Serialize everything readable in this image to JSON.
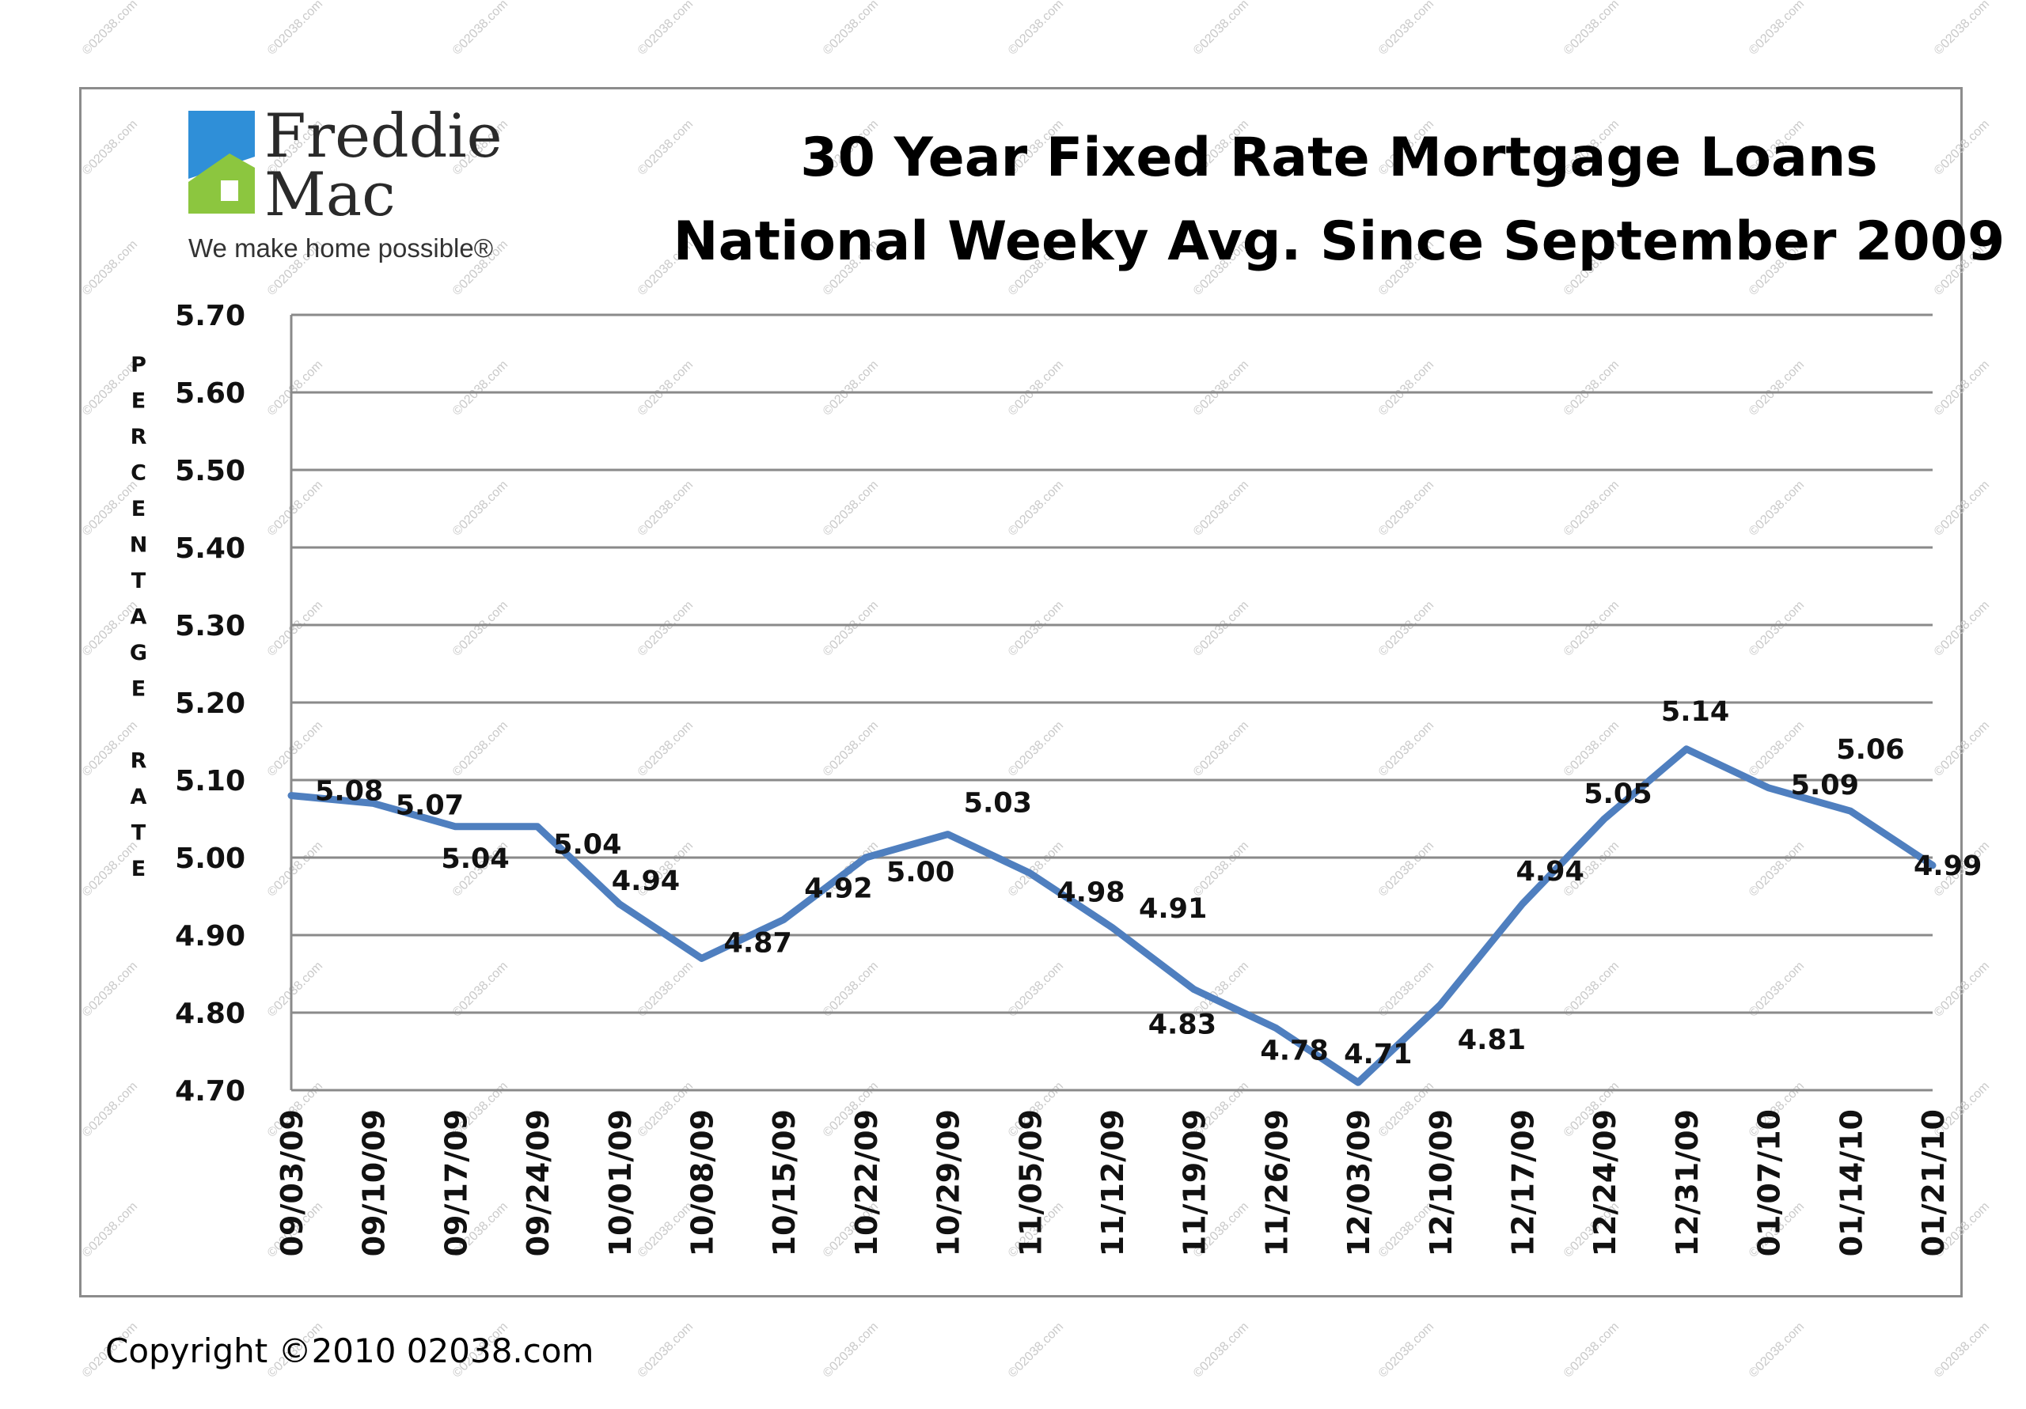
{
  "logo": {
    "line1": "Freddie",
    "line2": "Mac",
    "tagline": "We make home possible®",
    "colors": {
      "roof": "#2f8fd8",
      "house": "#8cc63f"
    }
  },
  "watermark": "©02038.com",
  "copyright": "Copyright ©2010 02038.com",
  "chart_data": {
    "type": "line",
    "title": [
      "30 Year Fixed Rate Mortgage Loans",
      "National Weeky Avg. Since September 2009"
    ],
    "ylabel_letters": [
      "P",
      "E",
      "R",
      "C",
      "E",
      "N",
      "T",
      "A",
      "G",
      "E",
      "",
      "R",
      "A",
      "T",
      "E"
    ],
    "ylim": [
      4.7,
      5.7
    ],
    "yticks": [
      "5.70",
      "5.60",
      "5.50",
      "5.40",
      "5.30",
      "5.20",
      "5.10",
      "5.00",
      "4.90",
      "4.80",
      "4.70"
    ],
    "grid": true,
    "line_color": "#4f7fbf",
    "categories": [
      "09/03/09",
      "09/10/09",
      "09/17/09",
      "09/24/09",
      "10/01/09",
      "10/08/09",
      "10/15/09",
      "10/22/09",
      "10/29/09",
      "11/05/09",
      "11/12/09",
      "11/19/09",
      "11/26/09",
      "12/03/09",
      "12/10/09",
      "12/17/09",
      "12/24/09",
      "12/31/09",
      "01/07/10",
      "01/14/10",
      "01/21/10"
    ],
    "values": [
      5.08,
      5.07,
      5.04,
      5.04,
      4.94,
      4.87,
      4.92,
      5.0,
      5.03,
      4.98,
      4.91,
      4.83,
      4.78,
      4.71,
      4.81,
      4.94,
      5.05,
      5.14,
      5.09,
      5.06,
      4.99
    ],
    "labels": [
      "5.08",
      "5.07",
      "5.04",
      "5.04",
      "4.94",
      "4.87",
      "4.92",
      "5.00",
      "5.03",
      "4.98",
      "4.91",
      "4.83",
      "4.78",
      "4.71",
      "4.81",
      "4.94",
      "5.05",
      "5.14",
      "5.09",
      "5.06",
      "4.99"
    ]
  }
}
